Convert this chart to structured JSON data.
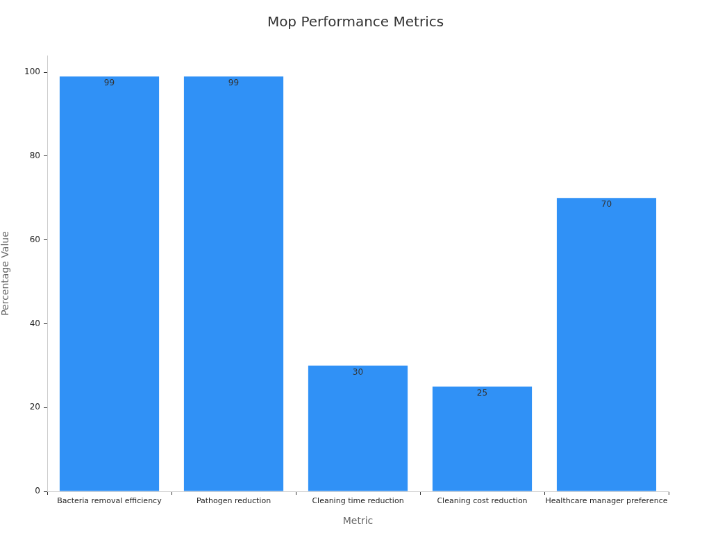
{
  "chart_data": {
    "type": "bar",
    "title": "Mop Performance Metrics",
    "xlabel": "Metric",
    "ylabel": "Percentage Value",
    "categories": [
      "Bacteria removal efficiency",
      "Pathogen reduction",
      "Cleaning time reduction",
      "Cleaning cost reduction",
      "Healthcare manager preference"
    ],
    "values": [
      99,
      99,
      30,
      25,
      70
    ],
    "color": "#3091f6",
    "ylim": [
      0,
      104
    ],
    "yticks": [
      0,
      20,
      40,
      60,
      80,
      100
    ],
    "data_labels": true
  }
}
